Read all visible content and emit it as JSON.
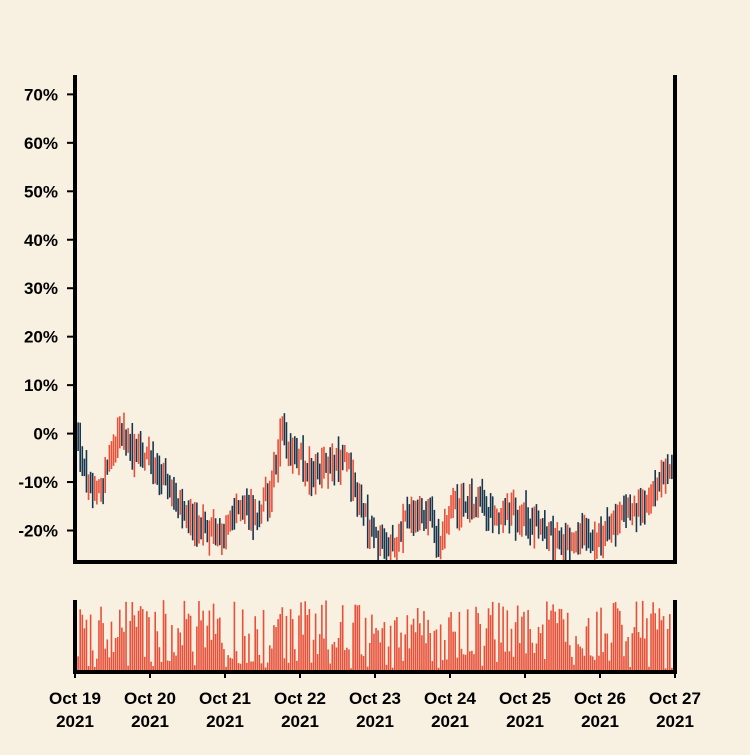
{
  "chart_data": {
    "type": "ohlc",
    "title": "",
    "xlabel": "",
    "ylabel": "",
    "y_axis": {
      "ticks": [
        -20,
        -10,
        0,
        10,
        20,
        30,
        40,
        50,
        60,
        70
      ],
      "tick_labels": [
        "-20%",
        "-10%",
        "0%",
        "10%",
        "20%",
        "30%",
        "40%",
        "50%",
        "60%",
        "70%"
      ],
      "ylim": [
        -26.5,
        74
      ]
    },
    "x_axis": {
      "start": "Oct 19 2021",
      "end": "Oct 27 2021",
      "ticks": [
        {
          "line1": "Oct 19",
          "line2": "2021"
        },
        {
          "line1": "Oct 20",
          "line2": "2021"
        },
        {
          "line1": "Oct 21",
          "line2": "2021"
        },
        {
          "line1": "Oct 22",
          "line2": "2021"
        },
        {
          "line1": "Oct 23",
          "line2": "2021"
        },
        {
          "line1": "Oct 24",
          "line2": "2021"
        },
        {
          "line1": "Oct 25",
          "line2": "2021"
        },
        {
          "line1": "Oct 26",
          "line2": "2021"
        },
        {
          "line1": "Oct 27",
          "line2": "2021"
        }
      ]
    },
    "colors": {
      "up": "#e8503a",
      "down": "#17374f",
      "volume": "#e8503a",
      "background": "#f8f0e0",
      "axis": "#000000"
    },
    "price_trend_keypoints": [
      [
        0,
        0
      ],
      [
        0.25,
        -15
      ],
      [
        0.45,
        -5
      ],
      [
        0.6,
        0
      ],
      [
        0.8,
        -5
      ],
      [
        1.0,
        -5
      ],
      [
        1.2,
        -9
      ],
      [
        1.5,
        -18
      ],
      [
        1.75,
        -21
      ],
      [
        2.0,
        -20
      ],
      [
        2.2,
        -15
      ],
      [
        2.4,
        -18
      ],
      [
        2.6,
        -12
      ],
      [
        2.75,
        0
      ],
      [
        3.0,
        -6
      ],
      [
        3.2,
        -9
      ],
      [
        3.45,
        -6
      ],
      [
        3.6,
        -4
      ],
      [
        3.75,
        -12
      ],
      [
        4.0,
        -22
      ],
      [
        4.2,
        -24
      ],
      [
        4.4,
        -18
      ],
      [
        4.7,
        -15
      ],
      [
        4.85,
        -25
      ],
      [
        5.0,
        -16
      ],
      [
        5.3,
        -14
      ],
      [
        5.6,
        -16
      ],
      [
        6.0,
        -18
      ],
      [
        6.3,
        -20
      ],
      [
        6.6,
        -22
      ],
      [
        7.0,
        -21
      ],
      [
        7.3,
        -18
      ],
      [
        7.6,
        -14
      ],
      [
        7.85,
        -8
      ],
      [
        8.0,
        -6
      ]
    ],
    "bars_per_day": 36,
    "volume_range": [
      5,
      100
    ]
  }
}
